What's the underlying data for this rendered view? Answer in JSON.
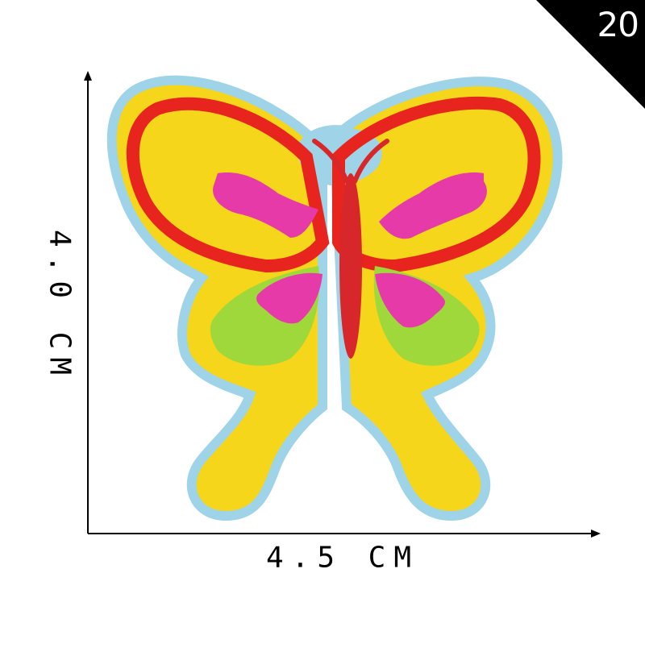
{
  "badge": {
    "number": "20",
    "color": "#000000"
  },
  "dimensions": {
    "height_label": "4.0 CM",
    "width_label": "4.5 CM"
  },
  "patch": {
    "subject": "embroidered butterfly patch",
    "colors": {
      "outline": "#9ed3e8",
      "wing_border": "#e8241f",
      "wing_fill": "#f6d61a",
      "accent_pink": "#e63aa8",
      "accent_green": "#9fd83a",
      "body": "#d8272a"
    }
  }
}
